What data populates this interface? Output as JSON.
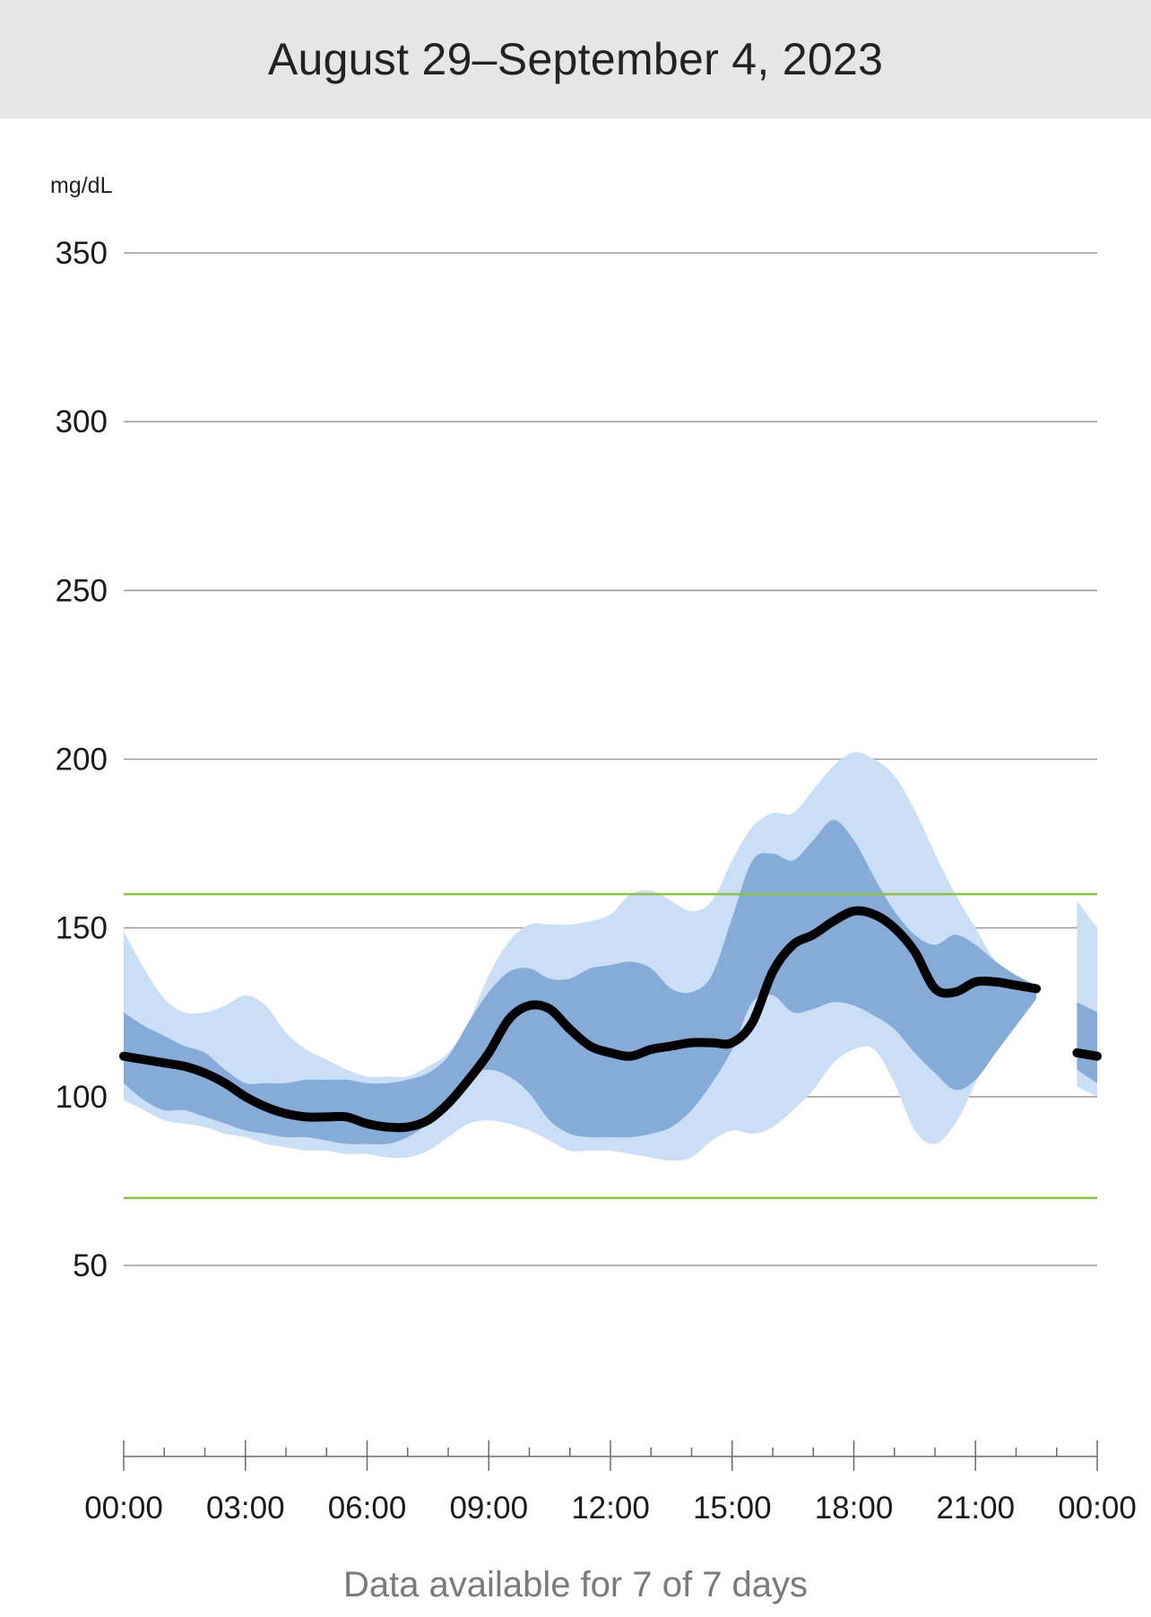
{
  "header": {
    "title": "August 29–September 4, 2023"
  },
  "footer": {
    "text": "Data available for 7 of 7 days"
  },
  "colors": {
    "header_bg": "#e6e6e6",
    "outer_band": "#cadff6",
    "inner_band": "#86abd7",
    "median": "#000000",
    "target_lines": "#8dc04b",
    "gridlines": "#9a9a9a"
  },
  "chart_data": {
    "type": "area",
    "title": "",
    "xlabel": "",
    "ylabel": "mg/dL",
    "xlim": [
      0,
      24
    ],
    "ylim": [
      0,
      370
    ],
    "yticks": [
      50,
      100,
      150,
      200,
      250,
      300,
      350
    ],
    "xtick_labels": [
      "00:00",
      "03:00",
      "06:00",
      "09:00",
      "12:00",
      "15:00",
      "18:00",
      "21:00",
      "00:00"
    ],
    "xtick_hours": [
      0,
      3,
      6,
      9,
      12,
      15,
      18,
      21,
      24
    ],
    "minor_tick_step_hours": 1,
    "grid": true,
    "target_range": [
      70,
      160
    ],
    "x": [
      0,
      0.5,
      1,
      1.5,
      2,
      2.5,
      3,
      3.5,
      4,
      4.5,
      5,
      5.5,
      6,
      6.5,
      7,
      7.5,
      8,
      8.5,
      9,
      9.5,
      10,
      10.5,
      11,
      11.5,
      12,
      12.5,
      13,
      13.5,
      14,
      14.5,
      15,
      15.5,
      16,
      16.5,
      17,
      17.5,
      18,
      18.5,
      19,
      19.5,
      20,
      20.5,
      21,
      21.5,
      22,
      22.5
    ],
    "series": [
      {
        "name": "p95",
        "values": [
          149,
          138,
          129,
          125,
          125,
          127,
          130,
          127,
          119,
          114,
          111,
          108,
          106,
          106,
          106,
          109,
          113,
          122,
          136,
          146,
          151,
          151,
          151,
          152,
          154,
          160,
          161,
          158,
          155,
          158,
          170,
          180,
          184,
          184,
          191,
          198,
          202,
          200,
          195,
          185,
          172,
          160,
          150,
          140,
          135,
          133
        ]
      },
      {
        "name": "p75",
        "values": [
          125,
          121,
          118,
          115,
          113,
          108,
          104,
          104,
          104,
          105,
          105,
          105,
          104,
          104,
          105,
          107,
          112,
          122,
          131,
          137,
          138,
          135,
          135,
          138,
          139,
          140,
          138,
          132,
          131,
          136,
          153,
          170,
          172,
          170,
          176,
          182,
          176,
          165,
          155,
          148,
          145,
          148,
          145,
          140,
          136,
          133
        ]
      },
      {
        "name": "p25",
        "values": [
          104,
          99,
          96,
          96,
          94,
          92,
          90,
          89,
          88,
          88,
          87,
          86,
          86,
          86,
          88,
          92,
          98,
          106,
          108,
          106,
          101,
          93,
          89,
          88,
          88,
          88,
          89,
          91,
          96,
          104,
          114,
          128,
          130,
          125,
          126,
          128,
          127,
          124,
          120,
          113,
          107,
          102,
          105,
          113,
          121,
          129
        ]
      },
      {
        "name": "p5",
        "values": [
          99,
          96,
          93,
          92,
          91,
          89,
          88,
          86,
          85,
          84,
          84,
          83,
          83,
          82,
          82,
          84,
          88,
          92,
          93,
          92,
          90,
          87,
          84,
          84,
          84,
          83,
          82,
          81,
          82,
          87,
          90,
          89,
          91,
          96,
          102,
          110,
          114,
          114,
          104,
          90,
          86,
          92,
          104,
          117,
          126,
          134
        ]
      },
      {
        "name": "median",
        "values": [
          112,
          111,
          110,
          109,
          107,
          104,
          100,
          97,
          95,
          94,
          94,
          94,
          92,
          91,
          91,
          93,
          98,
          105,
          113,
          123,
          127,
          126,
          120,
          115,
          113,
          112,
          114,
          115,
          116,
          116,
          116,
          122,
          137,
          145,
          148,
          152,
          155,
          154,
          150,
          143,
          132,
          131,
          134,
          134,
          133,
          132
        ]
      }
    ],
    "tail": {
      "x": [
        23.5,
        24
      ],
      "p95": [
        158,
        150
      ],
      "p75": [
        128,
        125
      ],
      "p25": [
        108,
        104
      ],
      "p5": [
        103,
        100
      ],
      "median": [
        113,
        112
      ]
    }
  }
}
